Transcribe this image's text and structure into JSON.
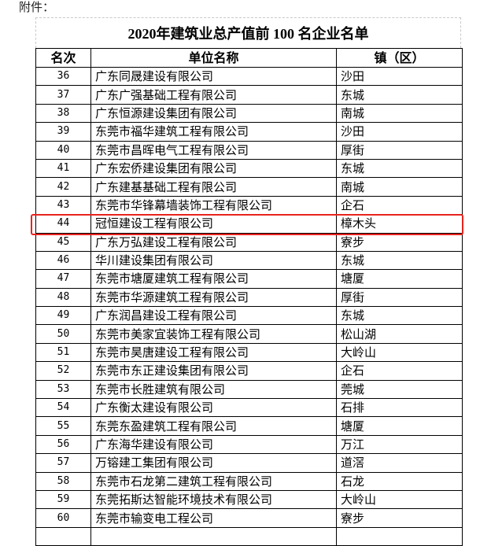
{
  "attachment_label": "附件：",
  "title": "2020年建筑业总产值前 100 名企业名单",
  "highlight_color": "#e8231e",
  "highlighted_rank": "44",
  "headers": [
    "名次",
    "单位名称",
    "镇（区）"
  ],
  "rows": [
    {
      "rank": "36",
      "name": "广东同晟建设有限公司",
      "town": "沙田"
    },
    {
      "rank": "37",
      "name": "广东广强基础工程有限公司",
      "town": "东城"
    },
    {
      "rank": "38",
      "name": "广东恒源建设集团有限公司",
      "town": "南城"
    },
    {
      "rank": "39",
      "name": "东莞市福华建筑工程有限公司",
      "town": "沙田"
    },
    {
      "rank": "40",
      "name": "东莞市昌晖电气工程有限公司",
      "town": "厚街"
    },
    {
      "rank": "41",
      "name": "广东宏侨建设集团有限公司",
      "town": "东城"
    },
    {
      "rank": "42",
      "name": "广东建基基础工程有限公司",
      "town": "南城"
    },
    {
      "rank": "43",
      "name": "东莞市华锋幕墙装饰工程有限公司",
      "town": "企石"
    },
    {
      "rank": "44",
      "name": "冠恒建设工程有限公司",
      "town": "樟木头"
    },
    {
      "rank": "45",
      "name": "广东万弘建设工程有限公司",
      "town": "寮步"
    },
    {
      "rank": "46",
      "name": "华川建设集团有限公司",
      "town": "东城"
    },
    {
      "rank": "47",
      "name": "东莞市塘厦建筑工程有限公司",
      "town": "塘厦"
    },
    {
      "rank": "48",
      "name": "东莞市华源建筑工程有限公司",
      "town": "厚街"
    },
    {
      "rank": "49",
      "name": "广东润昌建设工程有限公司",
      "town": "东城"
    },
    {
      "rank": "50",
      "name": "东莞市美家宜装饰工程有限公司",
      "town": "松山湖"
    },
    {
      "rank": "51",
      "name": "东莞市昊唐建设工程有限公司",
      "town": "大岭山"
    },
    {
      "rank": "52",
      "name": "东莞市东正建设集团有限公司",
      "town": "企石"
    },
    {
      "rank": "53",
      "name": "东莞市长胜建筑有限公司",
      "town": "莞城"
    },
    {
      "rank": "54",
      "name": "广东衡太建设有限公司",
      "town": "石排"
    },
    {
      "rank": "55",
      "name": "东莞东盈建筑工程有限公司",
      "town": "塘厦"
    },
    {
      "rank": "56",
      "name": "广东海华建设有限公司",
      "town": "万江"
    },
    {
      "rank": "57",
      "name": "万镕建工集团有限公司",
      "town": "道滘"
    },
    {
      "rank": "58",
      "name": "东莞市石龙第二建筑工程有限公司",
      "town": "石龙"
    },
    {
      "rank": "59",
      "name": "东莞拓斯达智能环境技术有限公司",
      "town": "大岭山"
    },
    {
      "rank": "60",
      "name": "东莞市输变电工程公司",
      "town": "寮步"
    }
  ]
}
